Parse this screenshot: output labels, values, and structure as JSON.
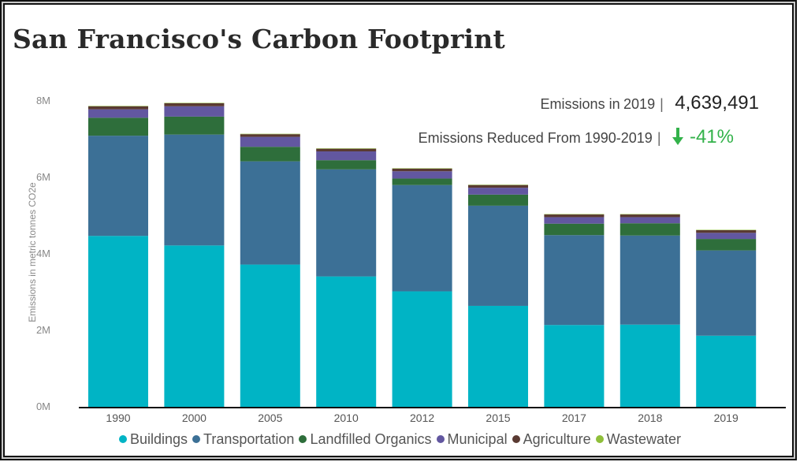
{
  "title": "San Francisco's Carbon Footprint",
  "kpis": {
    "emissions_label": "Emissions in",
    "emissions_year": "2019",
    "separator": "|",
    "emissions_value": "4,639,491",
    "reduction_label": "Emissions Reduced From 1990-2019",
    "reduction_value": "-41%",
    "reduction_icon": "arrow-down-icon",
    "reduction_color": "#33b24a"
  },
  "chart_data": {
    "type": "bar",
    "stacked": true,
    "ylabel": "Emissions in metric tonnes CO2e",
    "xlabel": "",
    "ylim": [
      0,
      8000000
    ],
    "yticks": [
      0,
      2000000,
      4000000,
      6000000,
      8000000
    ],
    "ytick_labels": [
      "0M",
      "2M",
      "4M",
      "6M",
      "8M"
    ],
    "grid": false,
    "legend_position": "bottom",
    "categories": [
      "1990",
      "2000",
      "2005",
      "2010",
      "2012",
      "2015",
      "2017",
      "2018",
      "2019"
    ],
    "series": [
      {
        "name": "Buildings",
        "color": "#00b4c5",
        "values": [
          4470000,
          4220000,
          3720000,
          3410000,
          3020000,
          2640000,
          2140000,
          2150000,
          1860000
        ]
      },
      {
        "name": "Transportation",
        "color": "#3c7096",
        "values": [
          2620000,
          2900000,
          2700000,
          2800000,
          2780000,
          2620000,
          2350000,
          2330000,
          2230000
        ]
      },
      {
        "name": "Landfilled Organics",
        "color": "#2e6e3b",
        "values": [
          470000,
          470000,
          380000,
          240000,
          170000,
          290000,
          300000,
          320000,
          300000
        ]
      },
      {
        "name": "Municipal",
        "color": "#6257a0",
        "values": [
          220000,
          270000,
          260000,
          230000,
          190000,
          180000,
          170000,
          160000,
          160000
        ]
      },
      {
        "name": "Agriculture",
        "color": "#5a3a32",
        "values": [
          80000,
          80000,
          70000,
          70000,
          70000,
          70000,
          70000,
          70000,
          70000
        ]
      },
      {
        "name": "Wastewater",
        "color": "#8fbf3a",
        "values": [
          10000,
          10000,
          10000,
          10000,
          10000,
          10000,
          10000,
          10000,
          10000
        ]
      }
    ]
  }
}
